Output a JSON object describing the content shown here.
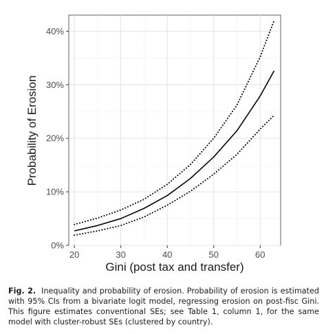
{
  "caption": {
    "label": "Fig. 2.",
    "text": "Inequality and probability of erosion. Probability of erosion is estimated with 95% CIs from a bivariate logit model, regressing erosion on post-fisc Gini. This figure estimates conventional SEs; see Table 1, column 1, for the same model with cluster-robust SEs (clustered by country)."
  },
  "chart_data": {
    "type": "line",
    "title": "",
    "xlabel": "Gini (post tax and transfer)",
    "ylabel": "Probability of Erosion",
    "xlim": [
      18.8,
      64.4
    ],
    "ylim": [
      0,
      0.43
    ],
    "x_ticks": [
      20,
      30,
      40,
      50,
      60
    ],
    "x_tick_labels": [
      "20",
      "30",
      "40",
      "50",
      "60"
    ],
    "y_ticks": [
      0,
      0.1,
      0.2,
      0.3,
      0.4
    ],
    "y_tick_labels": [
      "0%",
      "10%",
      "20%",
      "30%",
      "40%"
    ],
    "grid": true,
    "legend": "none",
    "x": [
      20,
      25,
      30,
      35,
      40,
      45,
      50,
      55,
      60,
      63
    ],
    "series": [
      {
        "style": "solid",
        "color": "#000000",
        "values": [
          0.027,
          0.037,
          0.05,
          0.069,
          0.093,
          0.125,
          0.165,
          0.214,
          0.279,
          0.326
        ]
      },
      {
        "style": "dotted",
        "color": "#000000",
        "values": [
          0.039,
          0.051,
          0.066,
          0.086,
          0.114,
          0.151,
          0.2,
          0.262,
          0.352,
          0.42
        ]
      },
      {
        "style": "dotted",
        "color": "#000000",
        "values": [
          0.019,
          0.027,
          0.037,
          0.053,
          0.075,
          0.101,
          0.133,
          0.17,
          0.217,
          0.243
        ]
      }
    ]
  }
}
